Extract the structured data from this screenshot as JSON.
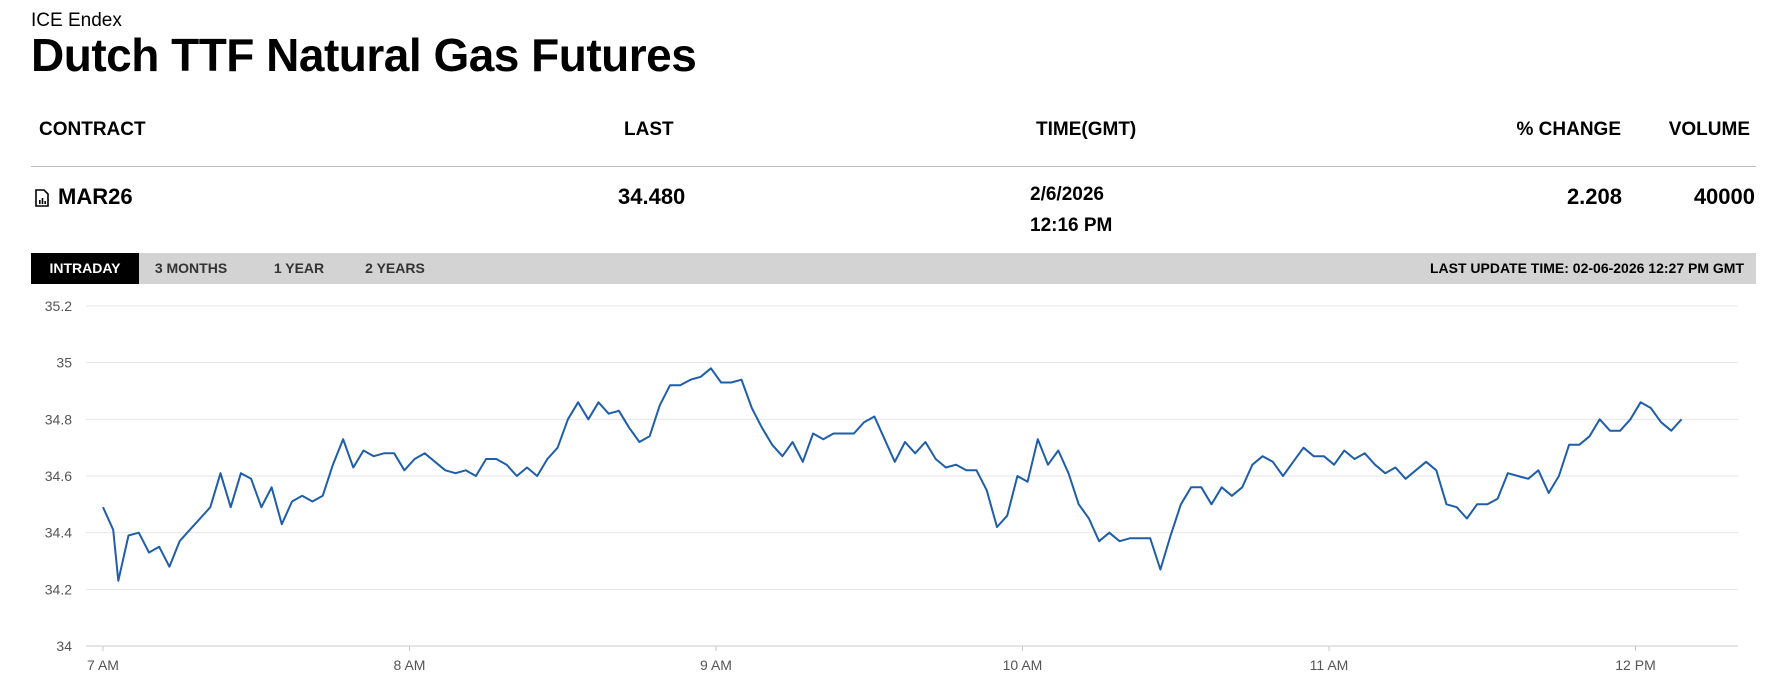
{
  "header": {
    "exchange": "ICE Endex",
    "title": "Dutch TTF Natural Gas Futures"
  },
  "table": {
    "headers": {
      "contract": "CONTRACT",
      "last": "LAST",
      "time": "TIME(GMT)",
      "change": "% CHANGE",
      "volume": "VOLUME"
    },
    "row": {
      "contract": "MAR26",
      "last": "34.480",
      "date": "2/6/2026",
      "time": "12:16 PM",
      "change": "2.208",
      "volume": "40000"
    }
  },
  "tabs": [
    {
      "label": "INTRADAY",
      "active": true
    },
    {
      "label": "3 MONTHS",
      "active": false
    },
    {
      "label": "1 YEAR",
      "active": false
    },
    {
      "label": "2 YEARS",
      "active": false
    }
  ],
  "last_update": "LAST UPDATE TIME: 02-06-2026 12:27 PM GMT",
  "colors": {
    "line": "#1f5ea8",
    "active_tab": "#000000",
    "tabbar": "#d3d3d3",
    "grid": "#e6e6e6"
  },
  "chart_data": {
    "type": "line",
    "title": "",
    "xlabel": "",
    "ylabel": "",
    "x_ticks": [
      "7 AM",
      "8 AM",
      "9 AM",
      "10 AM",
      "11 AM",
      "12 PM"
    ],
    "y_ticks": [
      "34",
      "34.2",
      "34.4",
      "34.6",
      "34.8",
      "35",
      "35.2"
    ],
    "ylim": [
      34,
      35.2
    ],
    "xlim_minutes_after_7am": [
      0,
      320
    ],
    "grid": true,
    "series": [
      {
        "points": [
          [
            0,
            34.49
          ],
          [
            2,
            34.41
          ],
          [
            3,
            34.23
          ],
          [
            5,
            34.39
          ],
          [
            7,
            34.4
          ],
          [
            9,
            34.33
          ],
          [
            11,
            34.35
          ],
          [
            13,
            34.28
          ],
          [
            15,
            34.37
          ],
          [
            17,
            34.41
          ],
          [
            19,
            34.45
          ],
          [
            21,
            34.49
          ],
          [
            23,
            34.61
          ],
          [
            25,
            34.49
          ],
          [
            27,
            34.61
          ],
          [
            29,
            34.59
          ],
          [
            31,
            34.49
          ],
          [
            33,
            34.56
          ],
          [
            35,
            34.43
          ],
          [
            37,
            34.51
          ],
          [
            39,
            34.53
          ],
          [
            41,
            34.51
          ],
          [
            43,
            34.53
          ],
          [
            45,
            34.64
          ],
          [
            47,
            34.73
          ],
          [
            49,
            34.63
          ],
          [
            51,
            34.69
          ],
          [
            53,
            34.67
          ],
          [
            55,
            34.68
          ],
          [
            57,
            34.68
          ],
          [
            59,
            34.62
          ],
          [
            61,
            34.66
          ],
          [
            63,
            34.68
          ],
          [
            65,
            34.65
          ],
          [
            67,
            34.62
          ],
          [
            69,
            34.61
          ],
          [
            71,
            34.62
          ],
          [
            73,
            34.6
          ],
          [
            75,
            34.66
          ],
          [
            77,
            34.66
          ],
          [
            79,
            34.64
          ],
          [
            81,
            34.6
          ],
          [
            83,
            34.63
          ],
          [
            85,
            34.6
          ],
          [
            87,
            34.66
          ],
          [
            89,
            34.7
          ],
          [
            91,
            34.8
          ],
          [
            93,
            34.86
          ],
          [
            95,
            34.8
          ],
          [
            97,
            34.86
          ],
          [
            99,
            34.82
          ],
          [
            101,
            34.83
          ],
          [
            103,
            34.77
          ],
          [
            105,
            34.72
          ],
          [
            107,
            34.74
          ],
          [
            109,
            34.85
          ],
          [
            111,
            34.92
          ],
          [
            113,
            34.92
          ],
          [
            115,
            34.94
          ],
          [
            117,
            34.95
          ],
          [
            119,
            34.98
          ],
          [
            121,
            34.93
          ],
          [
            123,
            34.93
          ],
          [
            125,
            34.94
          ],
          [
            127,
            34.84
          ],
          [
            129,
            34.77
          ],
          [
            131,
            34.71
          ],
          [
            133,
            34.67
          ],
          [
            135,
            34.72
          ],
          [
            137,
            34.65
          ],
          [
            139,
            34.75
          ],
          [
            141,
            34.73
          ],
          [
            143,
            34.75
          ],
          [
            145,
            34.75
          ],
          [
            147,
            34.75
          ],
          [
            149,
            34.79
          ],
          [
            151,
            34.81
          ],
          [
            153,
            34.73
          ],
          [
            155,
            34.65
          ],
          [
            157,
            34.72
          ],
          [
            159,
            34.68
          ],
          [
            161,
            34.72
          ],
          [
            163,
            34.66
          ],
          [
            165,
            34.63
          ],
          [
            167,
            34.64
          ],
          [
            169,
            34.62
          ],
          [
            171,
            34.62
          ],
          [
            173,
            34.55
          ],
          [
            175,
            34.42
          ],
          [
            177,
            34.46
          ],
          [
            179,
            34.6
          ],
          [
            181,
            34.58
          ],
          [
            183,
            34.73
          ],
          [
            185,
            34.64
          ],
          [
            187,
            34.69
          ],
          [
            189,
            34.61
          ],
          [
            191,
            34.5
          ],
          [
            193,
            34.45
          ],
          [
            195,
            34.37
          ],
          [
            197,
            34.4
          ],
          [
            199,
            34.37
          ],
          [
            201,
            34.38
          ],
          [
            203,
            34.38
          ],
          [
            205,
            34.38
          ],
          [
            207,
            34.27
          ],
          [
            209,
            34.39
          ],
          [
            211,
            34.5
          ],
          [
            213,
            34.56
          ],
          [
            215,
            34.56
          ],
          [
            217,
            34.5
          ],
          [
            219,
            34.56
          ],
          [
            221,
            34.53
          ],
          [
            223,
            34.56
          ],
          [
            225,
            34.64
          ],
          [
            227,
            34.67
          ],
          [
            229,
            34.65
          ],
          [
            231,
            34.6
          ],
          [
            233,
            34.65
          ],
          [
            235,
            34.7
          ],
          [
            237,
            34.67
          ],
          [
            239,
            34.67
          ],
          [
            241,
            34.64
          ],
          [
            243,
            34.69
          ],
          [
            245,
            34.66
          ],
          [
            247,
            34.68
          ],
          [
            249,
            34.64
          ],
          [
            251,
            34.61
          ],
          [
            253,
            34.63
          ],
          [
            255,
            34.59
          ],
          [
            257,
            34.62
          ],
          [
            259,
            34.65
          ],
          [
            261,
            34.62
          ],
          [
            263,
            34.5
          ],
          [
            265,
            34.49
          ],
          [
            267,
            34.45
          ],
          [
            269,
            34.5
          ],
          [
            271,
            34.5
          ],
          [
            273,
            34.52
          ],
          [
            275,
            34.61
          ],
          [
            277,
            34.6
          ],
          [
            279,
            34.59
          ],
          [
            281,
            34.62
          ],
          [
            283,
            34.54
          ],
          [
            285,
            34.6
          ],
          [
            287,
            34.71
          ],
          [
            289,
            34.71
          ],
          [
            291,
            34.74
          ],
          [
            293,
            34.8
          ],
          [
            295,
            34.76
          ],
          [
            297,
            34.76
          ],
          [
            299,
            34.8
          ],
          [
            301,
            34.86
          ],
          [
            303,
            34.84
          ],
          [
            305,
            34.79
          ],
          [
            307,
            34.76
          ],
          [
            309,
            34.8
          ]
        ]
      }
    ]
  }
}
